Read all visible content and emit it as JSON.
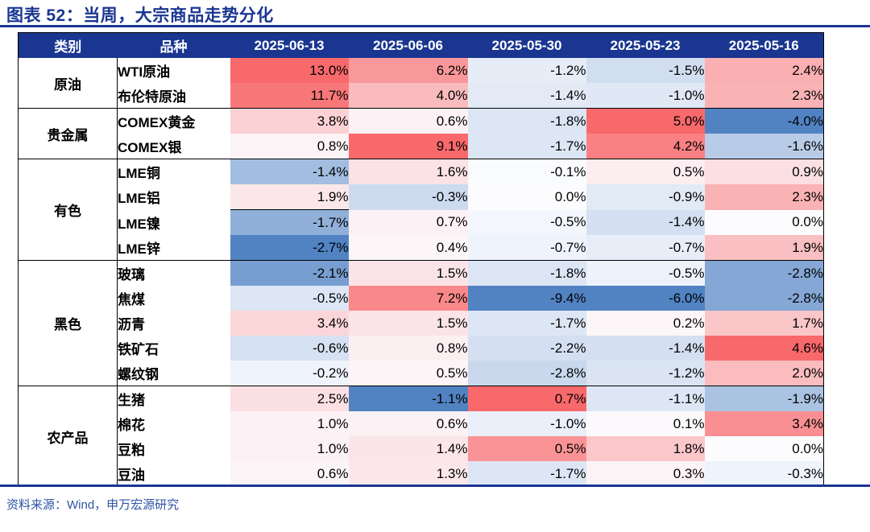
{
  "title": "图表 52：当周，大宗商品走势分化",
  "source": "资料来源：Wind，申万宏源研究",
  "colors": {
    "navy_accent": "#1A3691",
    "header_bg": "#1A3691",
    "header_text": "#FFFFFF",
    "source_text": "#3053A4",
    "scale_max_red": "#F8696B",
    "scale_mid_white": "#FCFCFF",
    "scale_min_blue": "#5183C3"
  },
  "chart_data": {
    "type": "heatmap",
    "title": "图表 52：当周，大宗商品走势分化",
    "header_labels": {
      "category": "类别",
      "variety": "品种"
    },
    "columns": [
      "2025-06-13",
      "2025-06-06",
      "2025-05-30",
      "2025-05-23",
      "2025-05-16"
    ],
    "value_format": "percent_one_decimal",
    "color_rule": "per-column 3-color scale: column max = red, 0 = white, column min = blue",
    "row_groups": [
      {
        "category": "原油",
        "rows": [
          {
            "name": "WTI原油",
            "values": [
              13.0,
              6.2,
              -1.2,
              -1.5,
              2.4
            ]
          },
          {
            "name": "布伦特原油",
            "values": [
              11.7,
              4.0,
              -1.4,
              -1.0,
              2.3
            ]
          }
        ]
      },
      {
        "category": "贵金属",
        "rows": [
          {
            "name": "COMEX黄金",
            "values": [
              3.8,
              0.6,
              -1.8,
              5.0,
              -4.0
            ]
          },
          {
            "name": "COMEX银",
            "values": [
              0.8,
              9.1,
              -1.7,
              4.2,
              -1.6
            ]
          }
        ]
      },
      {
        "category": "有色",
        "rows": [
          {
            "name": "LME铜",
            "values": [
              -1.4,
              1.6,
              -0.1,
              0.5,
              0.9
            ]
          },
          {
            "name": "LME铝",
            "values": [
              1.9,
              -0.3,
              0.0,
              -0.9,
              2.3
            ]
          },
          {
            "name": "LME镍",
            "values": [
              -1.7,
              0.7,
              -0.5,
              -1.4,
              0.0
            ]
          },
          {
            "name": "LME锌",
            "values": [
              -2.7,
              0.4,
              -0.7,
              -0.7,
              1.9
            ]
          }
        ]
      },
      {
        "category": "黑色",
        "rows": [
          {
            "name": "玻璃",
            "values": [
              -2.1,
              1.5,
              -1.8,
              -0.5,
              -2.8
            ]
          },
          {
            "name": "焦煤",
            "values": [
              -0.5,
              7.2,
              -9.4,
              -6.0,
              -2.8
            ]
          },
          {
            "name": "沥青",
            "values": [
              3.4,
              1.5,
              -1.7,
              0.2,
              1.7
            ]
          },
          {
            "name": "铁矿石",
            "values": [
              -0.6,
              0.8,
              -2.2,
              -1.4,
              4.6
            ]
          },
          {
            "name": "螺纹钢",
            "values": [
              -0.2,
              0.5,
              -2.8,
              -1.2,
              2.0
            ]
          }
        ]
      },
      {
        "category": "农产品",
        "rows": [
          {
            "name": "生猪",
            "values": [
              2.5,
              -1.1,
              0.7,
              -1.1,
              -1.9
            ]
          },
          {
            "name": "棉花",
            "values": [
              1.0,
              0.6,
              -1.0,
              0.1,
              3.4
            ]
          },
          {
            "name": "豆粕",
            "values": [
              1.0,
              1.4,
              0.5,
              1.8,
              0.0
            ]
          },
          {
            "name": "豆油",
            "values": [
              0.6,
              1.3,
              -1.7,
              0.3,
              -0.3
            ]
          }
        ]
      }
    ],
    "quirks": {
      "partial_border_under": {
        "row": "LME铝",
        "col_index": 0
      }
    }
  }
}
